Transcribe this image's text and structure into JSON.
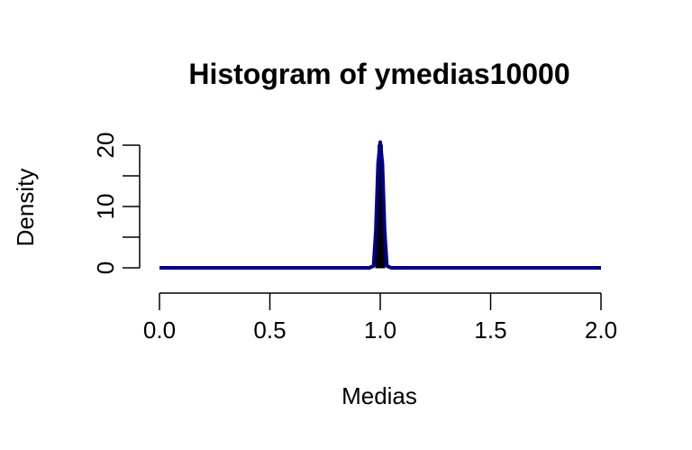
{
  "chart_data": {
    "type": "histogram",
    "title": "Histogram of ymedias10000",
    "xlabel": "Medias",
    "ylabel": "Density",
    "xlim": [
      0.0,
      2.0
    ],
    "ylim": [
      0,
      20
    ],
    "x_ticks": [
      "0.0",
      "0.5",
      "1.0",
      "1.5",
      "2.0"
    ],
    "x_tick_values": [
      0.0,
      0.5,
      1.0,
      1.5,
      2.0
    ],
    "y_ticks": [
      "0",
      "10",
      "20"
    ],
    "y_tick_values": [
      0,
      10,
      20
    ],
    "y_minor_ticks": [
      5,
      15
    ],
    "bins": [
      {
        "x0": 0.98,
        "x1": 0.99,
        "density": 8
      },
      {
        "x0": 0.99,
        "x1": 1.0,
        "density": 20
      },
      {
        "x0": 1.0,
        "x1": 1.01,
        "density": 20
      },
      {
        "x0": 1.01,
        "x1": 1.02,
        "density": 8
      }
    ],
    "density_curve": {
      "x": [
        0.0,
        0.5,
        0.95,
        0.97,
        0.98,
        0.99,
        1.0,
        1.01,
        1.02,
        1.03,
        1.05,
        1.5,
        2.0
      ],
      "y": [
        0,
        0,
        0,
        0.3,
        6,
        17,
        20.5,
        17,
        6,
        0.3,
        0,
        0,
        0
      ],
      "color": "#00008B"
    },
    "bar_fill": "#000000",
    "grid": false,
    "legend": "none"
  }
}
